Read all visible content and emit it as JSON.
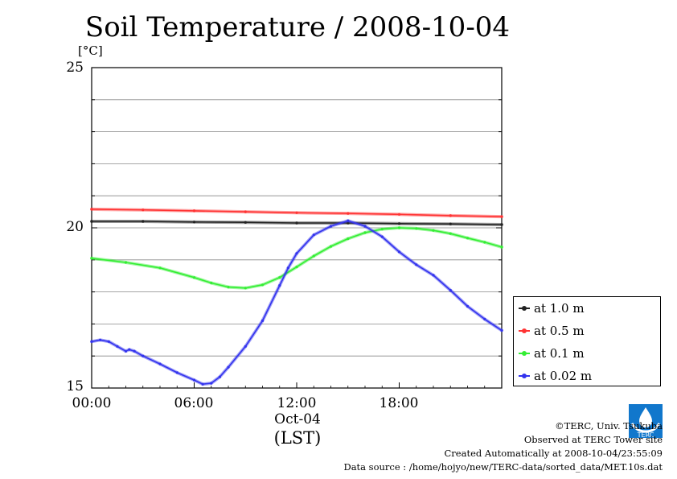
{
  "chart_data": {
    "type": "line",
    "title": "Soil Temperature / 2008-10-04",
    "unit_label": "[°C]",
    "y_ticks": [
      "25",
      "20",
      "15"
    ],
    "ylim": [
      15,
      25
    ],
    "x_ticks": [
      "00:00",
      "06:00",
      "12:00",
      "18:00"
    ],
    "x_date_label": "Oct-04",
    "x_zone_label": "(LST)",
    "xlim_hours": [
      0,
      24
    ],
    "grid": true,
    "legend_position": "right, below plot top",
    "series": [
      {
        "name": "at 1.0 m",
        "color": "#222222",
        "points": [
          [
            0,
            20.2
          ],
          [
            3,
            20.2
          ],
          [
            6,
            20.18
          ],
          [
            9,
            20.17
          ],
          [
            12,
            20.15
          ],
          [
            15,
            20.15
          ],
          [
            18,
            20.13
          ],
          [
            21,
            20.12
          ],
          [
            24,
            20.1
          ]
        ]
      },
      {
        "name": "at 0.5 m",
        "color": "#ff3333",
        "points": [
          [
            0,
            20.58
          ],
          [
            3,
            20.56
          ],
          [
            6,
            20.53
          ],
          [
            9,
            20.5
          ],
          [
            12,
            20.47
          ],
          [
            15,
            20.45
          ],
          [
            18,
            20.42
          ],
          [
            21,
            20.38
          ],
          [
            24,
            20.35
          ]
        ]
      },
      {
        "name": "at 0.1 m",
        "color": "#33ee33",
        "points": [
          [
            0,
            19.05
          ],
          [
            2,
            18.92
          ],
          [
            4,
            18.75
          ],
          [
            6,
            18.45
          ],
          [
            7,
            18.28
          ],
          [
            8,
            18.15
          ],
          [
            9,
            18.12
          ],
          [
            10,
            18.22
          ],
          [
            11,
            18.45
          ],
          [
            12,
            18.78
          ],
          [
            13,
            19.12
          ],
          [
            14,
            19.42
          ],
          [
            15,
            19.66
          ],
          [
            16,
            19.85
          ],
          [
            17,
            19.96
          ],
          [
            18,
            20.0
          ],
          [
            19,
            19.98
          ],
          [
            20,
            19.92
          ],
          [
            21,
            19.82
          ],
          [
            22,
            19.68
          ],
          [
            23,
            19.55
          ],
          [
            24,
            19.4
          ]
        ]
      },
      {
        "name": "at 0.02 m",
        "color": "#3333ee",
        "points": [
          [
            0,
            16.45
          ],
          [
            0.5,
            16.5
          ],
          [
            1,
            16.45
          ],
          [
            1.5,
            16.3
          ],
          [
            2,
            16.15
          ],
          [
            2.2,
            16.2
          ],
          [
            2.5,
            16.15
          ],
          [
            3,
            16.0
          ],
          [
            4,
            15.75
          ],
          [
            5,
            15.48
          ],
          [
            6,
            15.25
          ],
          [
            6.5,
            15.12
          ],
          [
            7,
            15.15
          ],
          [
            7.5,
            15.35
          ],
          [
            8,
            15.65
          ],
          [
            9,
            16.3
          ],
          [
            10,
            17.1
          ],
          [
            11,
            18.2
          ],
          [
            11.5,
            18.75
          ],
          [
            12,
            19.2
          ],
          [
            13,
            19.78
          ],
          [
            14,
            20.05
          ],
          [
            15,
            20.22
          ],
          [
            16,
            20.05
          ],
          [
            17,
            19.72
          ],
          [
            18,
            19.25
          ],
          [
            19,
            18.85
          ],
          [
            20,
            18.52
          ],
          [
            21,
            18.05
          ],
          [
            22,
            17.55
          ],
          [
            23,
            17.15
          ],
          [
            24,
            16.8
          ]
        ]
      }
    ]
  },
  "credits": {
    "copyright": "©TERC, Univ. Tsukuba",
    "observed": "Observed at TERC Tower site",
    "created": "Created Automatically at 2008-10-04/23:55:09",
    "source": "Data source : /home/hojyo/new/TERC-data/sorted_data/MET.10s.dat",
    "logo_text": "TERC"
  }
}
